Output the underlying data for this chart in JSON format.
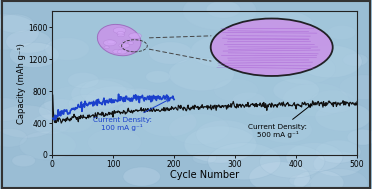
{
  "title": "",
  "xlabel": "Cycle Number",
  "ylabel": "Capacity (mAh g⁻¹)",
  "xlim": [
    0,
    500
  ],
  "ylim": [
    0,
    1800
  ],
  "yticks": [
    0,
    400,
    800,
    1200,
    1600
  ],
  "xticks": [
    0,
    100,
    200,
    300,
    400,
    500
  ],
  "bg_color": "#9abdd4",
  "plot_bg_color": "#a8cce0",
  "blue_line_color": "#1a40cc",
  "black_line_color": "#111111",
  "annotation_blue": "Current Density:\n100 mA g⁻¹",
  "annotation_black": "Current Density:\n500 mA g⁻¹",
  "small_particle_color": "#c895e8",
  "large_circle_color": "#c895e8",
  "outer_border_color": "#222222",
  "frame_color": "#333333"
}
